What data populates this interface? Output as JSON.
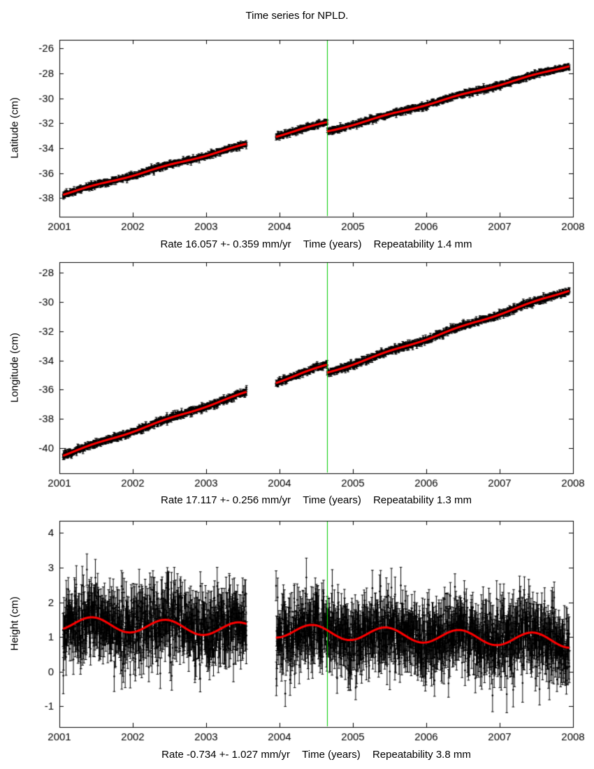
{
  "title": "Time series for NPLD.",
  "colors": {
    "points": "#000000",
    "trend": "#ff0000",
    "vline": "#00cc00",
    "background": "#ffffff"
  },
  "chart_data": [
    {
      "type": "scatter",
      "panel": "latitude",
      "ylabel": "Latitude (cm)",
      "rate_label": "Rate 16.057 +- 0.359 mm/yr",
      "time_label": "Time (years)",
      "repeat_label": "Repeatability 1.4 mm",
      "xlim": [
        2001,
        2008
      ],
      "ylim": [
        -39.5,
        -25.3
      ],
      "xticks": [
        2001,
        2002,
        2003,
        2004,
        2005,
        2006,
        2007,
        2008
      ],
      "yticks": [
        -38,
        -36,
        -34,
        -32,
        -30,
        -28,
        -26
      ],
      "vline_x": 2004.65,
      "series": {
        "name": "daily position with errorbars",
        "start": 2001.05,
        "end": 2007.95,
        "samples_per_year": 320,
        "intercept_cm": -37.78,
        "rate_cm_per_yr": 1.6057,
        "offset_time": 2004.65,
        "offset_cm": -0.75,
        "seasonal_amp_cm": 0.05,
        "seasonal_phase": 0.2,
        "noise_sd_cm": 0.1,
        "errorbar_cm": 0.14,
        "gap": [
          2003.55,
          2003.95
        ],
        "seed": 11
      }
    },
    {
      "type": "scatter",
      "panel": "longitude",
      "ylabel": "Longitude (cm)",
      "rate_label": "Rate 17.117 +- 0.256 mm/yr",
      "time_label": "Time (years)",
      "repeat_label": "Repeatability 1.3 mm",
      "xlim": [
        2001,
        2008
      ],
      "ylim": [
        -41.7,
        -27.3
      ],
      "xticks": [
        2001,
        2002,
        2003,
        2004,
        2005,
        2006,
        2007,
        2008
      ],
      "yticks": [
        -40,
        -38,
        -36,
        -34,
        -32,
        -30,
        -28
      ],
      "vline_x": 2004.65,
      "series": {
        "name": "daily position with errorbars",
        "start": 2001.05,
        "end": 2007.95,
        "samples_per_year": 320,
        "intercept_cm": -40.55,
        "rate_cm_per_yr": 1.7117,
        "offset_time": 2004.65,
        "offset_cm": -0.55,
        "seasonal_amp_cm": 0.05,
        "seasonal_phase": 0.2,
        "noise_sd_cm": 0.1,
        "errorbar_cm": 0.13,
        "gap": [
          2003.55,
          2003.95
        ],
        "seed": 22
      }
    },
    {
      "type": "scatter",
      "panel": "height",
      "ylabel": "Height (cm)",
      "rate_label": "Rate -0.734 +- 1.027 mm/yr",
      "time_label": "Time (years)",
      "repeat_label": "Repeatability 3.8 mm",
      "xlim": [
        2001,
        2008
      ],
      "ylim": [
        -1.6,
        4.35
      ],
      "xticks": [
        2001,
        2002,
        2003,
        2004,
        2005,
        2006,
        2007,
        2008
      ],
      "yticks": [
        -1,
        0,
        1,
        2,
        3,
        4
      ],
      "vline_x": 2004.65,
      "series": {
        "name": "daily position with errorbars",
        "start": 2001.05,
        "end": 2007.95,
        "samples_per_year": 320,
        "intercept_cm": 1.4,
        "rate_cm_per_yr": -0.0734,
        "offset_time": 2004.65,
        "offset_cm": 0,
        "seasonal_amp_cm": 0.2,
        "seasonal_phase": 0.2,
        "noise_sd_cm": 0.5,
        "errorbar_cm": 0.45,
        "gap": [
          2003.55,
          2003.95
        ],
        "seed": 33
      }
    }
  ]
}
